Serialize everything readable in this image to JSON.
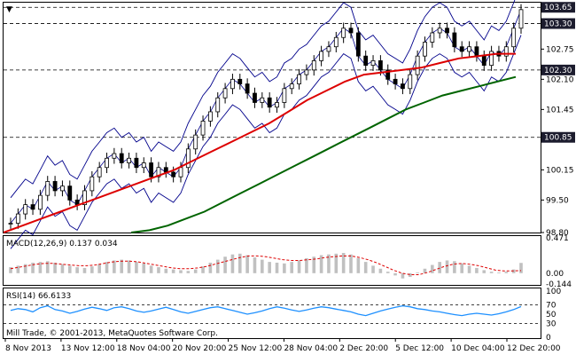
{
  "chart_data": [
    {
      "type": "candlestick",
      "panel": "price",
      "title_symbol": "▼",
      "ylim": [
        98.8,
        103.75
      ],
      "y_ticks": [
        "103.30",
        "102.75",
        "102.10",
        "101.45",
        "100.85",
        "100.15",
        "99.50",
        "98.80"
      ],
      "price_labels": [
        {
          "value": "103.65",
          "style": "dark"
        },
        {
          "value": "103.30",
          "style": "dark"
        },
        {
          "value": "102.30",
          "style": "dark"
        },
        {
          "value": "100.85",
          "style": "dark"
        }
      ],
      "horizontal_levels": [
        103.65,
        103.3,
        102.3,
        100.85
      ],
      "x_ticks": [
        "8 Nov 2013",
        "13 Nov 12:00",
        "18 Nov 04:00",
        "20 Nov 20:00",
        "25 Nov 12:00",
        "28 Nov 04:00",
        "2 Dec 20:00",
        "5 Dec 12:00",
        "10 Dec 04:00",
        "12 Dec 20:00"
      ],
      "close_path": [
        99.0,
        99.2,
        99.4,
        99.3,
        99.6,
        99.9,
        99.7,
        99.8,
        99.5,
        99.4,
        99.7,
        100.0,
        100.2,
        100.4,
        100.5,
        100.3,
        100.4,
        100.2,
        100.3,
        100.0,
        100.2,
        100.1,
        100.0,
        100.2,
        100.6,
        100.9,
        101.2,
        101.4,
        101.7,
        101.9,
        102.1,
        102.0,
        101.8,
        101.6,
        101.7,
        101.5,
        101.6,
        101.9,
        102.0,
        102.2,
        102.3,
        102.5,
        102.7,
        102.8,
        103.0,
        103.2,
        103.1,
        102.6,
        102.4,
        102.5,
        102.3,
        102.1,
        102.0,
        101.9,
        102.2,
        102.6,
        102.9,
        103.1,
        103.2,
        103.1,
        102.8,
        102.7,
        102.8,
        102.6,
        102.4,
        102.7,
        102.6,
        102.8,
        103.2,
        103.6
      ],
      "moving_average_red": [
        98.8,
        98.95,
        99.1,
        99.25,
        99.4,
        99.55,
        99.7,
        99.85,
        100.0,
        100.15,
        100.35,
        100.55,
        100.75,
        100.95,
        101.15,
        101.4,
        101.65,
        101.85,
        102.05,
        102.2,
        102.25,
        102.3,
        102.35,
        102.45,
        102.55,
        102.6,
        102.65,
        102.65
      ],
      "moving_average_green": [
        98.8,
        98.85,
        98.95,
        99.1,
        99.25,
        99.45,
        99.65,
        99.85,
        100.05,
        100.25,
        100.45,
        100.65,
        100.85,
        101.05,
        101.25,
        101.45,
        101.6,
        101.75,
        101.85,
        101.95,
        102.05,
        102.15
      ]
    },
    {
      "type": "bar",
      "panel": "macd",
      "label": "MACD(12,26,9) 0.137 0.034",
      "y_ticks": [
        "0.471",
        "0.00",
        "-0.144"
      ],
      "ylim": [
        -0.144,
        0.471
      ],
      "values": [
        0.08,
        0.1,
        0.12,
        0.14,
        0.15,
        0.16,
        0.14,
        0.12,
        0.1,
        0.08,
        0.07,
        0.09,
        0.12,
        0.15,
        0.17,
        0.18,
        0.17,
        0.15,
        0.13,
        0.1,
        0.08,
        0.06,
        0.05,
        0.04,
        0.03,
        0.05,
        0.09,
        0.14,
        0.18,
        0.22,
        0.25,
        0.26,
        0.24,
        0.21,
        0.18,
        0.15,
        0.14,
        0.13,
        0.15,
        0.17,
        0.2,
        0.22,
        0.24,
        0.25,
        0.26,
        0.27,
        0.25,
        0.2,
        0.15,
        0.1,
        0.06,
        0.02,
        -0.03,
        -0.07,
        -0.05,
        0.01,
        0.06,
        0.11,
        0.15,
        0.17,
        0.16,
        0.13,
        0.1,
        0.07,
        0.04,
        0.02,
        0.01,
        0.02,
        0.05,
        0.137
      ],
      "signal": [
        0.06,
        0.08,
        0.1,
        0.12,
        0.13,
        0.13,
        0.12,
        0.11,
        0.1,
        0.1,
        0.11,
        0.13,
        0.15,
        0.16,
        0.16,
        0.15,
        0.13,
        0.11,
        0.09,
        0.07,
        0.06,
        0.06,
        0.07,
        0.09,
        0.12,
        0.15,
        0.18,
        0.21,
        0.23,
        0.23,
        0.22,
        0.2,
        0.18,
        0.17,
        0.17,
        0.18,
        0.19,
        0.21,
        0.22,
        0.23,
        0.23,
        0.21,
        0.18,
        0.14,
        0.09,
        0.04,
        0.0,
        -0.02,
        -0.02,
        0.01,
        0.05,
        0.09,
        0.12,
        0.13,
        0.12,
        0.1,
        0.07,
        0.04,
        0.03,
        0.03,
        0.034
      ]
    },
    {
      "type": "line",
      "panel": "rsi",
      "label": "RSI(14) 66.6133",
      "y_ticks": [
        "100",
        "70",
        "50",
        "30",
        "0"
      ],
      "ylim": [
        0,
        100
      ],
      "levels": [
        70,
        30
      ],
      "values": [
        58,
        62,
        60,
        55,
        64,
        68,
        60,
        57,
        52,
        56,
        61,
        65,
        62,
        58,
        64,
        66,
        62,
        57,
        54,
        57,
        61,
        65,
        60,
        55,
        52,
        56,
        60,
        64,
        66,
        62,
        58,
        54,
        50,
        53,
        57,
        62,
        66,
        63,
        59,
        56,
        59,
        63,
        66,
        64,
        61,
        58,
        55,
        50,
        47,
        52,
        57,
        61,
        65,
        68,
        66,
        62,
        60,
        57,
        55,
        52,
        49,
        47,
        50,
        52,
        50,
        48,
        51,
        55,
        60,
        66.6
      ]
    }
  ],
  "footer": {
    "copyright": "Mill Trade, © 2001-2013, MetaQuotes Software Corp."
  },
  "colors": {
    "candle": "#000000",
    "bollinger": "#00008b",
    "ma_fast": "#dd0000",
    "ma_slow": "#006400",
    "macd_hist": "#c0c0c0",
    "macd_signal": "#dd0000",
    "rsi": "#1e90ff",
    "label_bg": "#1c1c2e"
  }
}
